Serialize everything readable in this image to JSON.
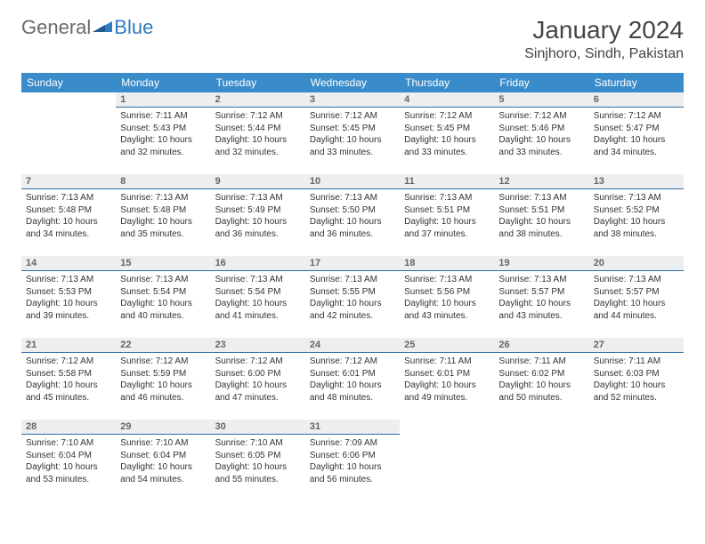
{
  "brand": {
    "part1": "General",
    "part2": "Blue"
  },
  "title": "January 2024",
  "location": "Sinjhoro, Sindh, Pakistan",
  "colors": {
    "header_bg": "#3a8bc9",
    "header_text": "#ffffff",
    "daynum_bg": "#eceef0",
    "daynum_text": "#666666",
    "daynum_border": "#2f6fa5",
    "body_text": "#333333",
    "brand_gray": "#6a6a6a",
    "brand_blue": "#2f7bbf",
    "title_color": "#444444"
  },
  "day_headers": [
    "Sunday",
    "Monday",
    "Tuesday",
    "Wednesday",
    "Thursday",
    "Friday",
    "Saturday"
  ],
  "weeks": [
    [
      null,
      {
        "n": "1",
        "sr": "Sunrise: 7:11 AM",
        "ss": "Sunset: 5:43 PM",
        "dl": "Daylight: 10 hours and 32 minutes."
      },
      {
        "n": "2",
        "sr": "Sunrise: 7:12 AM",
        "ss": "Sunset: 5:44 PM",
        "dl": "Daylight: 10 hours and 32 minutes."
      },
      {
        "n": "3",
        "sr": "Sunrise: 7:12 AM",
        "ss": "Sunset: 5:45 PM",
        "dl": "Daylight: 10 hours and 33 minutes."
      },
      {
        "n": "4",
        "sr": "Sunrise: 7:12 AM",
        "ss": "Sunset: 5:45 PM",
        "dl": "Daylight: 10 hours and 33 minutes."
      },
      {
        "n": "5",
        "sr": "Sunrise: 7:12 AM",
        "ss": "Sunset: 5:46 PM",
        "dl": "Daylight: 10 hours and 33 minutes."
      },
      {
        "n": "6",
        "sr": "Sunrise: 7:12 AM",
        "ss": "Sunset: 5:47 PM",
        "dl": "Daylight: 10 hours and 34 minutes."
      }
    ],
    [
      {
        "n": "7",
        "sr": "Sunrise: 7:13 AM",
        "ss": "Sunset: 5:48 PM",
        "dl": "Daylight: 10 hours and 34 minutes."
      },
      {
        "n": "8",
        "sr": "Sunrise: 7:13 AM",
        "ss": "Sunset: 5:48 PM",
        "dl": "Daylight: 10 hours and 35 minutes."
      },
      {
        "n": "9",
        "sr": "Sunrise: 7:13 AM",
        "ss": "Sunset: 5:49 PM",
        "dl": "Daylight: 10 hours and 36 minutes."
      },
      {
        "n": "10",
        "sr": "Sunrise: 7:13 AM",
        "ss": "Sunset: 5:50 PM",
        "dl": "Daylight: 10 hours and 36 minutes."
      },
      {
        "n": "11",
        "sr": "Sunrise: 7:13 AM",
        "ss": "Sunset: 5:51 PM",
        "dl": "Daylight: 10 hours and 37 minutes."
      },
      {
        "n": "12",
        "sr": "Sunrise: 7:13 AM",
        "ss": "Sunset: 5:51 PM",
        "dl": "Daylight: 10 hours and 38 minutes."
      },
      {
        "n": "13",
        "sr": "Sunrise: 7:13 AM",
        "ss": "Sunset: 5:52 PM",
        "dl": "Daylight: 10 hours and 38 minutes."
      }
    ],
    [
      {
        "n": "14",
        "sr": "Sunrise: 7:13 AM",
        "ss": "Sunset: 5:53 PM",
        "dl": "Daylight: 10 hours and 39 minutes."
      },
      {
        "n": "15",
        "sr": "Sunrise: 7:13 AM",
        "ss": "Sunset: 5:54 PM",
        "dl": "Daylight: 10 hours and 40 minutes."
      },
      {
        "n": "16",
        "sr": "Sunrise: 7:13 AM",
        "ss": "Sunset: 5:54 PM",
        "dl": "Daylight: 10 hours and 41 minutes."
      },
      {
        "n": "17",
        "sr": "Sunrise: 7:13 AM",
        "ss": "Sunset: 5:55 PM",
        "dl": "Daylight: 10 hours and 42 minutes."
      },
      {
        "n": "18",
        "sr": "Sunrise: 7:13 AM",
        "ss": "Sunset: 5:56 PM",
        "dl": "Daylight: 10 hours and 43 minutes."
      },
      {
        "n": "19",
        "sr": "Sunrise: 7:13 AM",
        "ss": "Sunset: 5:57 PM",
        "dl": "Daylight: 10 hours and 43 minutes."
      },
      {
        "n": "20",
        "sr": "Sunrise: 7:13 AM",
        "ss": "Sunset: 5:57 PM",
        "dl": "Daylight: 10 hours and 44 minutes."
      }
    ],
    [
      {
        "n": "21",
        "sr": "Sunrise: 7:12 AM",
        "ss": "Sunset: 5:58 PM",
        "dl": "Daylight: 10 hours and 45 minutes."
      },
      {
        "n": "22",
        "sr": "Sunrise: 7:12 AM",
        "ss": "Sunset: 5:59 PM",
        "dl": "Daylight: 10 hours and 46 minutes."
      },
      {
        "n": "23",
        "sr": "Sunrise: 7:12 AM",
        "ss": "Sunset: 6:00 PM",
        "dl": "Daylight: 10 hours and 47 minutes."
      },
      {
        "n": "24",
        "sr": "Sunrise: 7:12 AM",
        "ss": "Sunset: 6:01 PM",
        "dl": "Daylight: 10 hours and 48 minutes."
      },
      {
        "n": "25",
        "sr": "Sunrise: 7:11 AM",
        "ss": "Sunset: 6:01 PM",
        "dl": "Daylight: 10 hours and 49 minutes."
      },
      {
        "n": "26",
        "sr": "Sunrise: 7:11 AM",
        "ss": "Sunset: 6:02 PM",
        "dl": "Daylight: 10 hours and 50 minutes."
      },
      {
        "n": "27",
        "sr": "Sunrise: 7:11 AM",
        "ss": "Sunset: 6:03 PM",
        "dl": "Daylight: 10 hours and 52 minutes."
      }
    ],
    [
      {
        "n": "28",
        "sr": "Sunrise: 7:10 AM",
        "ss": "Sunset: 6:04 PM",
        "dl": "Daylight: 10 hours and 53 minutes."
      },
      {
        "n": "29",
        "sr": "Sunrise: 7:10 AM",
        "ss": "Sunset: 6:04 PM",
        "dl": "Daylight: 10 hours and 54 minutes."
      },
      {
        "n": "30",
        "sr": "Sunrise: 7:10 AM",
        "ss": "Sunset: 6:05 PM",
        "dl": "Daylight: 10 hours and 55 minutes."
      },
      {
        "n": "31",
        "sr": "Sunrise: 7:09 AM",
        "ss": "Sunset: 6:06 PM",
        "dl": "Daylight: 10 hours and 56 minutes."
      },
      null,
      null,
      null
    ]
  ]
}
